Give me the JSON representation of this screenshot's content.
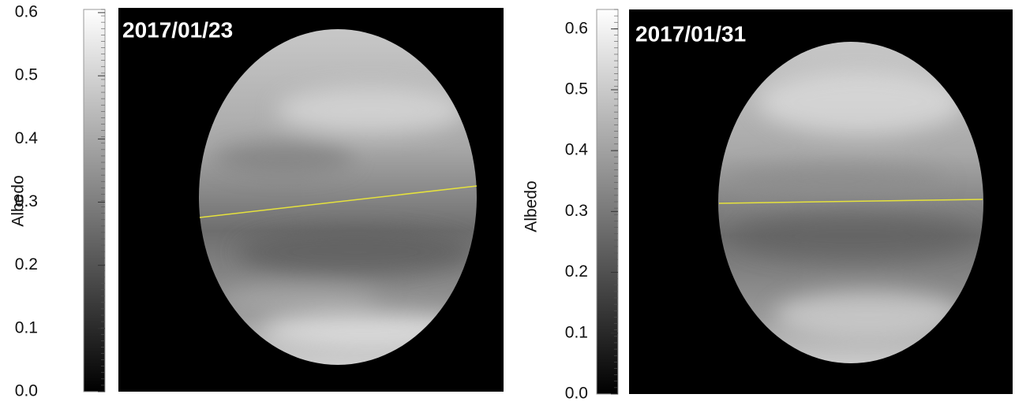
{
  "panels": [
    {
      "date": "2017/01/23",
      "colorbar": {
        "label": "Albedo",
        "lim": [
          0,
          0.605
        ],
        "ticks": [
          {
            "value": 0,
            "label": "0.0"
          },
          {
            "value": 0.1,
            "label": "0.1"
          },
          {
            "value": 0.2,
            "label": "0.2"
          },
          {
            "value": 0.3,
            "label": "0.3"
          },
          {
            "value": 0.4,
            "label": "0.4"
          },
          {
            "value": 0.5,
            "label": "0.5"
          },
          {
            "value": 0.6,
            "label": "0.6"
          }
        ]
      }
    },
    {
      "date": "2017/01/31",
      "colorbar": {
        "label": "Albedo",
        "lim": [
          0,
          0.632
        ],
        "ticks": [
          {
            "value": 0,
            "label": "0.0"
          },
          {
            "value": 0.1,
            "label": "0.1"
          },
          {
            "value": 0.2,
            "label": "0.2"
          },
          {
            "value": 0.3,
            "label": "0.3"
          },
          {
            "value": 0.4,
            "label": "0.4"
          },
          {
            "value": 0.5,
            "label": "0.5"
          },
          {
            "value": 0.6,
            "label": "0.6"
          }
        ]
      }
    }
  ]
}
